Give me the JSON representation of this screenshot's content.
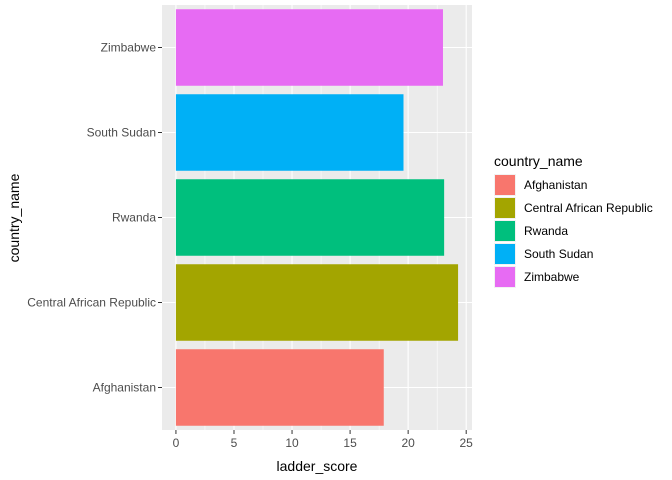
{
  "chart_data": {
    "type": "bar",
    "orientation": "horizontal",
    "categories": [
      "Afghanistan",
      "Central African Republic",
      "Rwanda",
      "South Sudan",
      "Zimbabwe"
    ],
    "values": [
      17.9,
      24.3,
      23.1,
      19.6,
      23.0
    ],
    "colors": [
      "#F8766D",
      "#A3A500",
      "#00BF7D",
      "#00B0F6",
      "#E76BF3"
    ],
    "xlabel": "ladder_score",
    "ylabel": "country_name",
    "xlim": [
      -1.2,
      25.5
    ],
    "x_ticks": [
      0,
      5,
      10,
      15,
      20,
      25
    ],
    "grid": true,
    "legend": {
      "title": "country_name",
      "placement": "right",
      "entries": [
        "Afghanistan",
        "Central African Republic",
        "Rwanda",
        "South Sudan",
        "Zimbabwe"
      ]
    },
    "panel_background": "#EBEBEB",
    "grid_color": "#FFFFFF"
  }
}
